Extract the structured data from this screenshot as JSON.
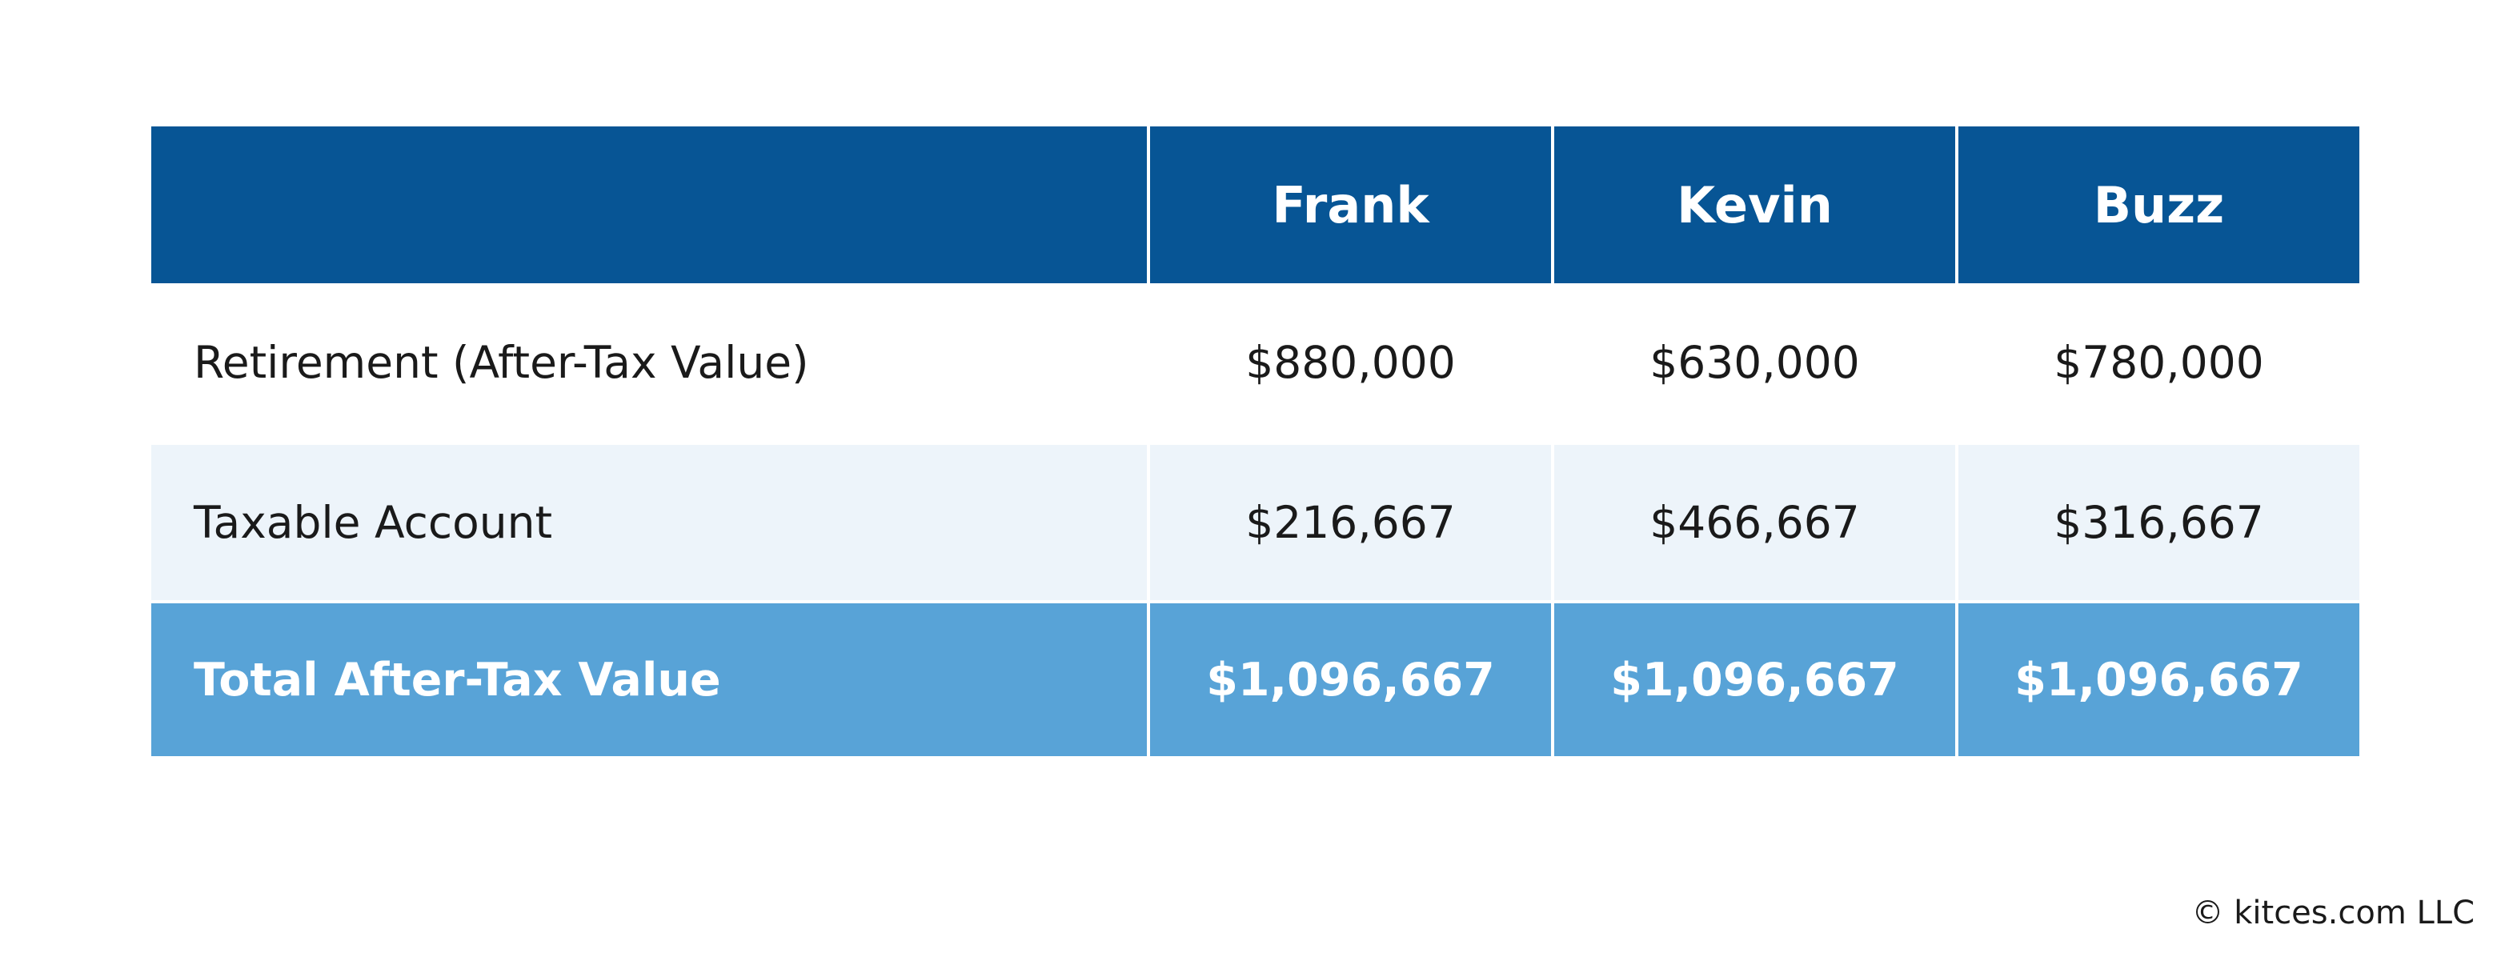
{
  "chart_data": {
    "type": "table",
    "columns": [
      "",
      "Frank",
      "Kevin",
      "Buzz"
    ],
    "rows": [
      {
        "label": "Retirement (After-Tax Value)",
        "values": [
          "$880,000",
          "$630,000",
          "$780,000"
        ]
      },
      {
        "label": "Taxable Account",
        "values": [
          "$216,667",
          "$466,667",
          "$316,667"
        ]
      },
      {
        "label": "Total After-Tax Value",
        "values": [
          "$1,096,667",
          "$1,096,667",
          "$1,096,667"
        ]
      }
    ]
  },
  "colors": {
    "header_bg": "#075595",
    "light_row_bg": "#edf4fa",
    "total_row_bg": "#58a3d7"
  },
  "footer": {
    "copyright": "© kitces.com LLC"
  }
}
